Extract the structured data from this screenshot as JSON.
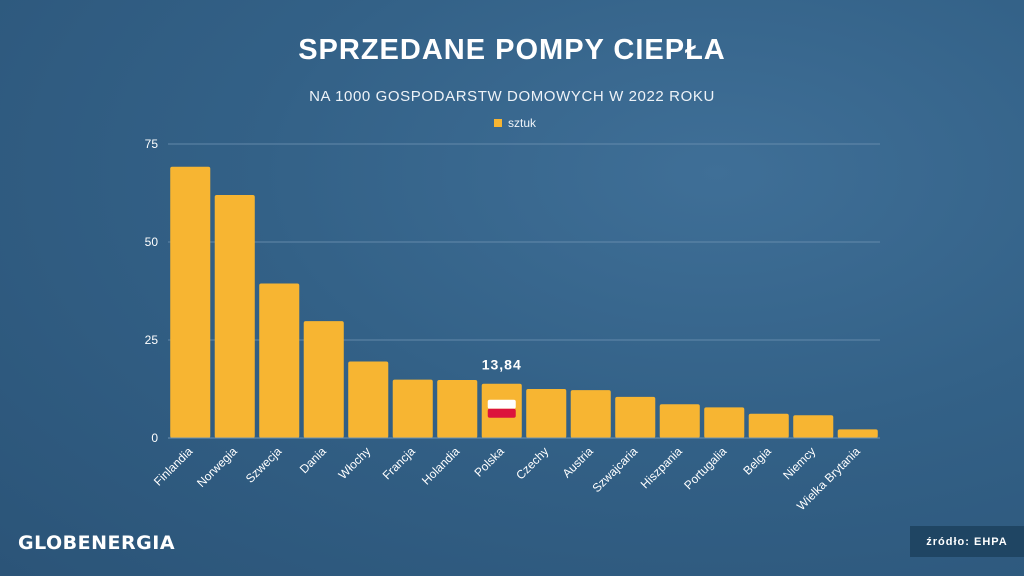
{
  "title": "SPRZEDANE POMPY CIEPŁA",
  "subtitle": "NA 1000 GOSPODARSTW DOMOWYCH W 2022 ROKU",
  "logo": "GLOBENERGIA",
  "source": "źródło: EHPA",
  "colors": {
    "bar": "#f7b532",
    "background": "#336187",
    "grid": "#6f93b3",
    "flag_red": "#dc143c"
  },
  "chart_data": {
    "type": "bar",
    "categories": [
      "Finlandia",
      "Norwegia",
      "Szwecja",
      "Dania",
      "Włochy",
      "Francja",
      "Holandia",
      "Polska",
      "Czechy",
      "Austria",
      "Szwajcaria",
      "Hiszpania",
      "Portugalia",
      "Belgia",
      "Niemcy",
      "Wielka Brytania"
    ],
    "series": [
      {
        "name": "sztuk",
        "values": [
          69.2,
          62.0,
          39.4,
          29.8,
          19.5,
          14.9,
          14.8,
          13.84,
          12.5,
          12.2,
          10.5,
          8.6,
          7.8,
          6.2,
          5.8,
          2.2
        ]
      }
    ],
    "ylim": [
      0,
      75
    ],
    "yticks": [
      "0",
      "25",
      "50",
      "75"
    ],
    "grid": true,
    "legend": "top-center",
    "annotation": {
      "category": "Polska",
      "text": "13,84"
    },
    "xlabel": "",
    "ylabel": ""
  }
}
